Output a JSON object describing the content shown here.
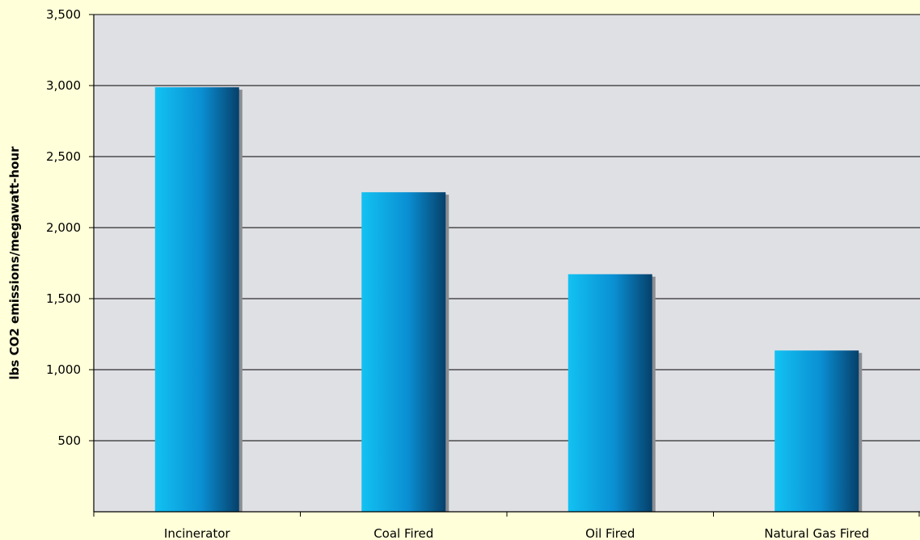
{
  "chart_data": {
    "type": "bar",
    "title": "",
    "xlabel": "",
    "ylabel": "lbs CO2 emissions/megawatt-hour",
    "categories": [
      "Incinerator",
      "Coal Fired",
      "Oil Fired",
      "Natural Gas Fired"
    ],
    "values": [
      2988,
      2249,
      1672,
      1135
    ],
    "ylim": [
      0,
      3500
    ],
    "yticks": [
      500,
      1000,
      1500,
      2000,
      2500,
      3000,
      3500
    ],
    "ytick_labels": [
      "500",
      "1,000",
      "1,500",
      "2,000",
      "2,500",
      "3,000",
      "3,500"
    ],
    "grid": true,
    "legend": "none",
    "colors": {
      "page_background": "#ffffd9",
      "plot_background": "#dfe0e4",
      "gridline": "#000000",
      "bar_light": "#12c2f2",
      "bar_mid": "#0a8fd3",
      "bar_dark": "#06406a",
      "bar_shadow": "#8a8d92"
    }
  }
}
